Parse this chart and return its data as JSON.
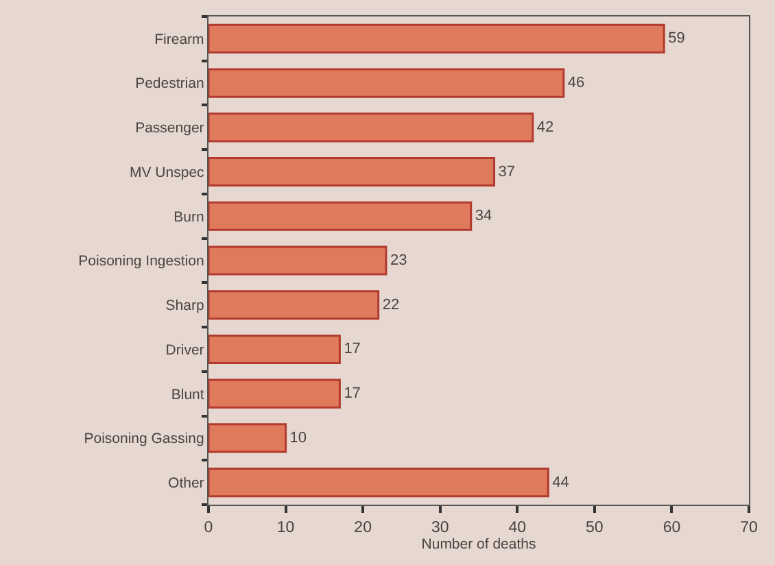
{
  "chart_data": {
    "type": "bar",
    "orientation": "horizontal",
    "xlabel": "Number of deaths",
    "categories": [
      "Firearm",
      "Pedestrian",
      "Passenger",
      "MV Unspec",
      "Burn",
      "Poisoning Ingestion",
      "Sharp",
      "Driver",
      "Blunt",
      "Poisoning Gassing",
      "Other"
    ],
    "values": [
      59,
      46,
      42,
      37,
      34,
      23,
      22,
      17,
      17,
      10,
      44
    ],
    "color": "#e07a5c",
    "data_labels": true,
    "xlim": [
      0,
      70
    ],
    "xticks": [
      0,
      10,
      20,
      30,
      40,
      50,
      60,
      70
    ],
    "grid": false
  }
}
